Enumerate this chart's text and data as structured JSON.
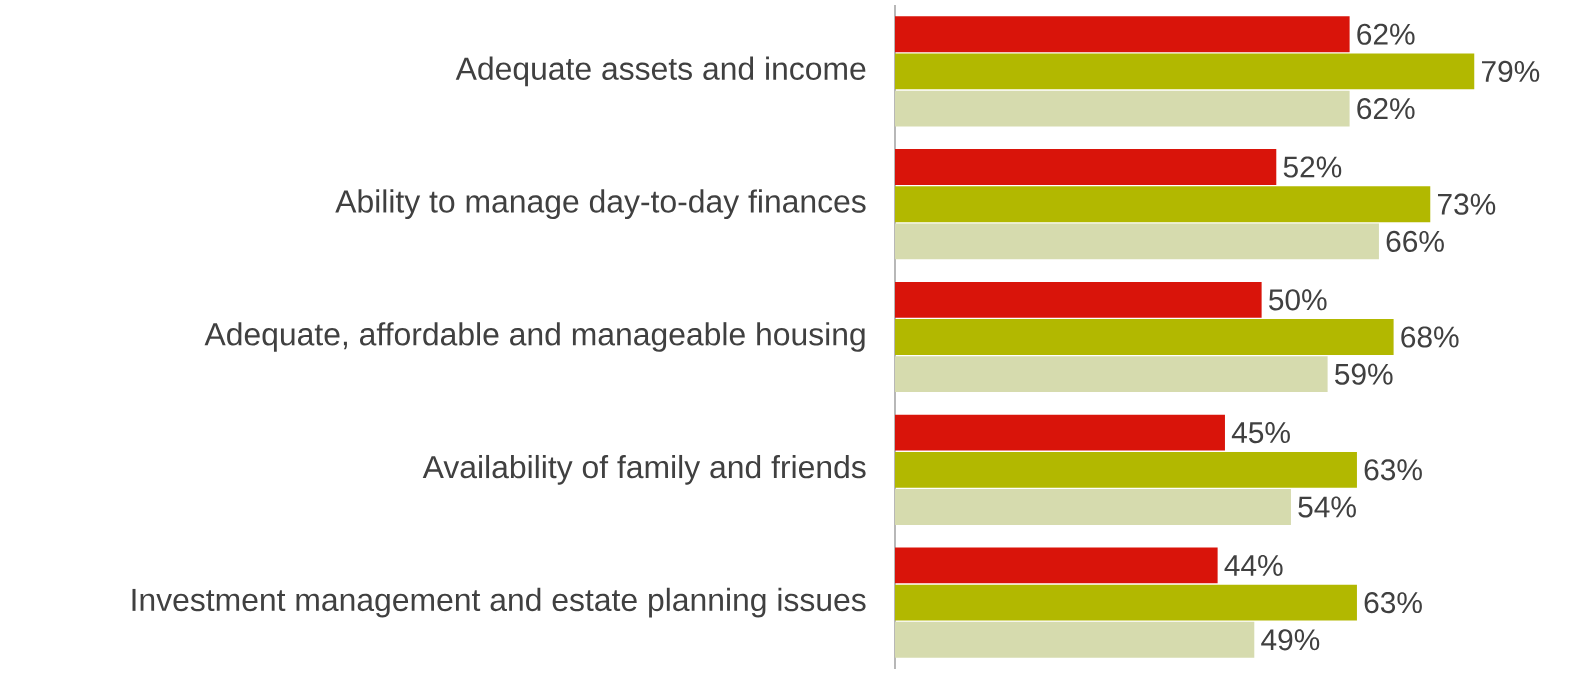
{
  "chart_data": {
    "type": "bar",
    "orientation": "horizontal",
    "categories": [
      "Adequate assets and income",
      "Ability to manage day-to-day finances",
      "Adequate, affordable and manageable housing",
      "Availability of family and friends",
      "Investment management and estate planning issues"
    ],
    "series": [
      {
        "color": "#d9140a",
        "values": [
          62,
          52,
          50,
          45,
          44
        ],
        "value_labels": [
          "62%",
          "52%",
          "50%",
          "45%",
          "44%"
        ]
      },
      {
        "color": "#b2b800",
        "values": [
          79,
          73,
          68,
          63,
          63
        ],
        "value_labels": [
          "79%",
          "73%",
          "68%",
          "63%",
          "63%"
        ]
      },
      {
        "color": "#d6dbae",
        "values": [
          62,
          66,
          59,
          54,
          49
        ],
        "value_labels": [
          "62%",
          "66%",
          "59%",
          "54%",
          "49%"
        ]
      }
    ]
  }
}
